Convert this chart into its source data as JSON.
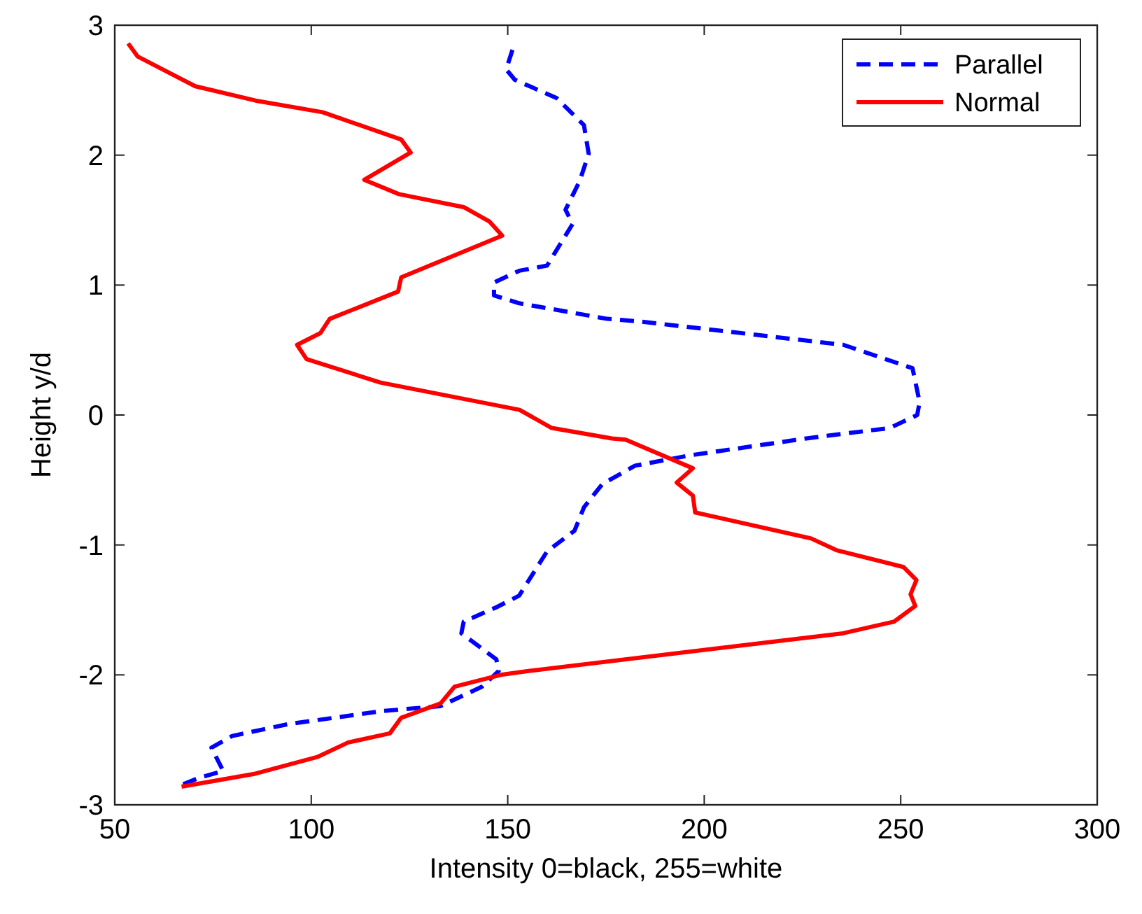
{
  "chart_data": {
    "type": "line",
    "xlabel": "Intensity 0=black, 255=white",
    "ylabel": "Height y/d",
    "xlim": [
      50,
      300
    ],
    "xticks": [
      50,
      100,
      150,
      200,
      250,
      300
    ],
    "ylim": [
      -3,
      3
    ],
    "yticks": [
      -3,
      -2,
      -1,
      0,
      1,
      2,
      3
    ],
    "grid": false,
    "legend": "top right",
    "marker": "none",
    "series": [
      {
        "name": "Parallel",
        "color": "#0000ff",
        "line_style": "dashed",
        "x": [
          151.2,
          149.6,
          151.8,
          162.4,
          169.4,
          170.6,
          168.3,
          164.7,
          166.5,
          160,
          152.9,
          146.5,
          146.5,
          152.9,
          175.3,
          183.6,
          235.4,
          253,
          254.8,
          254.2,
          247.2,
          226,
          196.5,
          182.4,
          174.1,
          169.4,
          167,
          160,
          152.9,
          147.1,
          138.8,
          138.2,
          147.1,
          147.7,
          143.5,
          132.9,
          117.6,
          94,
          79.9,
          74.6,
          77.6,
          71.7,
          65.8
        ],
        "values": [
          2.81,
          2.66,
          2.58,
          2.44,
          2.23,
          2.01,
          1.8,
          1.58,
          1.47,
          1.15,
          1.11,
          1.02,
          0.92,
          0.86,
          0.74,
          0.72,
          0.54,
          0.36,
          0.1,
          0,
          -0.1,
          -0.18,
          -0.31,
          -0.39,
          -0.53,
          -0.71,
          -0.89,
          -1.05,
          -1.39,
          -1.48,
          -1.59,
          -1.68,
          -1.88,
          -1.97,
          -2.09,
          -2.24,
          -2.28,
          -2.38,
          -2.47,
          -2.56,
          -2.74,
          -2.79,
          -2.86
        ]
      },
      {
        "name": "Normal",
        "color": "#ff0000",
        "line_style": "solid",
        "x": [
          53.4,
          55.8,
          70.5,
          85.8,
          102.9,
          122.9,
          125.3,
          113.5,
          122.3,
          138.8,
          145.3,
          148.6,
          122.9,
          122.1,
          104.7,
          102.3,
          96.4,
          98.8,
          117.6,
          153,
          161.2,
          176.5,
          180,
          197.1,
          193,
          197.1,
          197.7,
          227.2,
          233.6,
          250.7,
          254,
          252.5,
          253.7,
          248.3,
          235.3,
          155.3,
          148.2,
          136.5,
          132.9,
          122.9,
          120,
          109.4,
          101.7,
          85.8,
          67
        ],
        "values": [
          2.86,
          2.76,
          2.53,
          2.42,
          2.33,
          2.12,
          2.02,
          1.81,
          1.7,
          1.6,
          1.49,
          1.38,
          1.06,
          0.95,
          0.74,
          0.63,
          0.54,
          0.43,
          0.25,
          0.04,
          -0.1,
          -0.18,
          -0.19,
          -0.41,
          -0.52,
          -0.62,
          -0.75,
          -0.95,
          -1.04,
          -1.17,
          -1.27,
          -1.38,
          -1.47,
          -1.59,
          -1.68,
          -1.97,
          -2,
          -2.09,
          -2.22,
          -2.33,
          -2.45,
          -2.52,
          -2.63,
          -2.76,
          -2.86
        ]
      }
    ]
  }
}
